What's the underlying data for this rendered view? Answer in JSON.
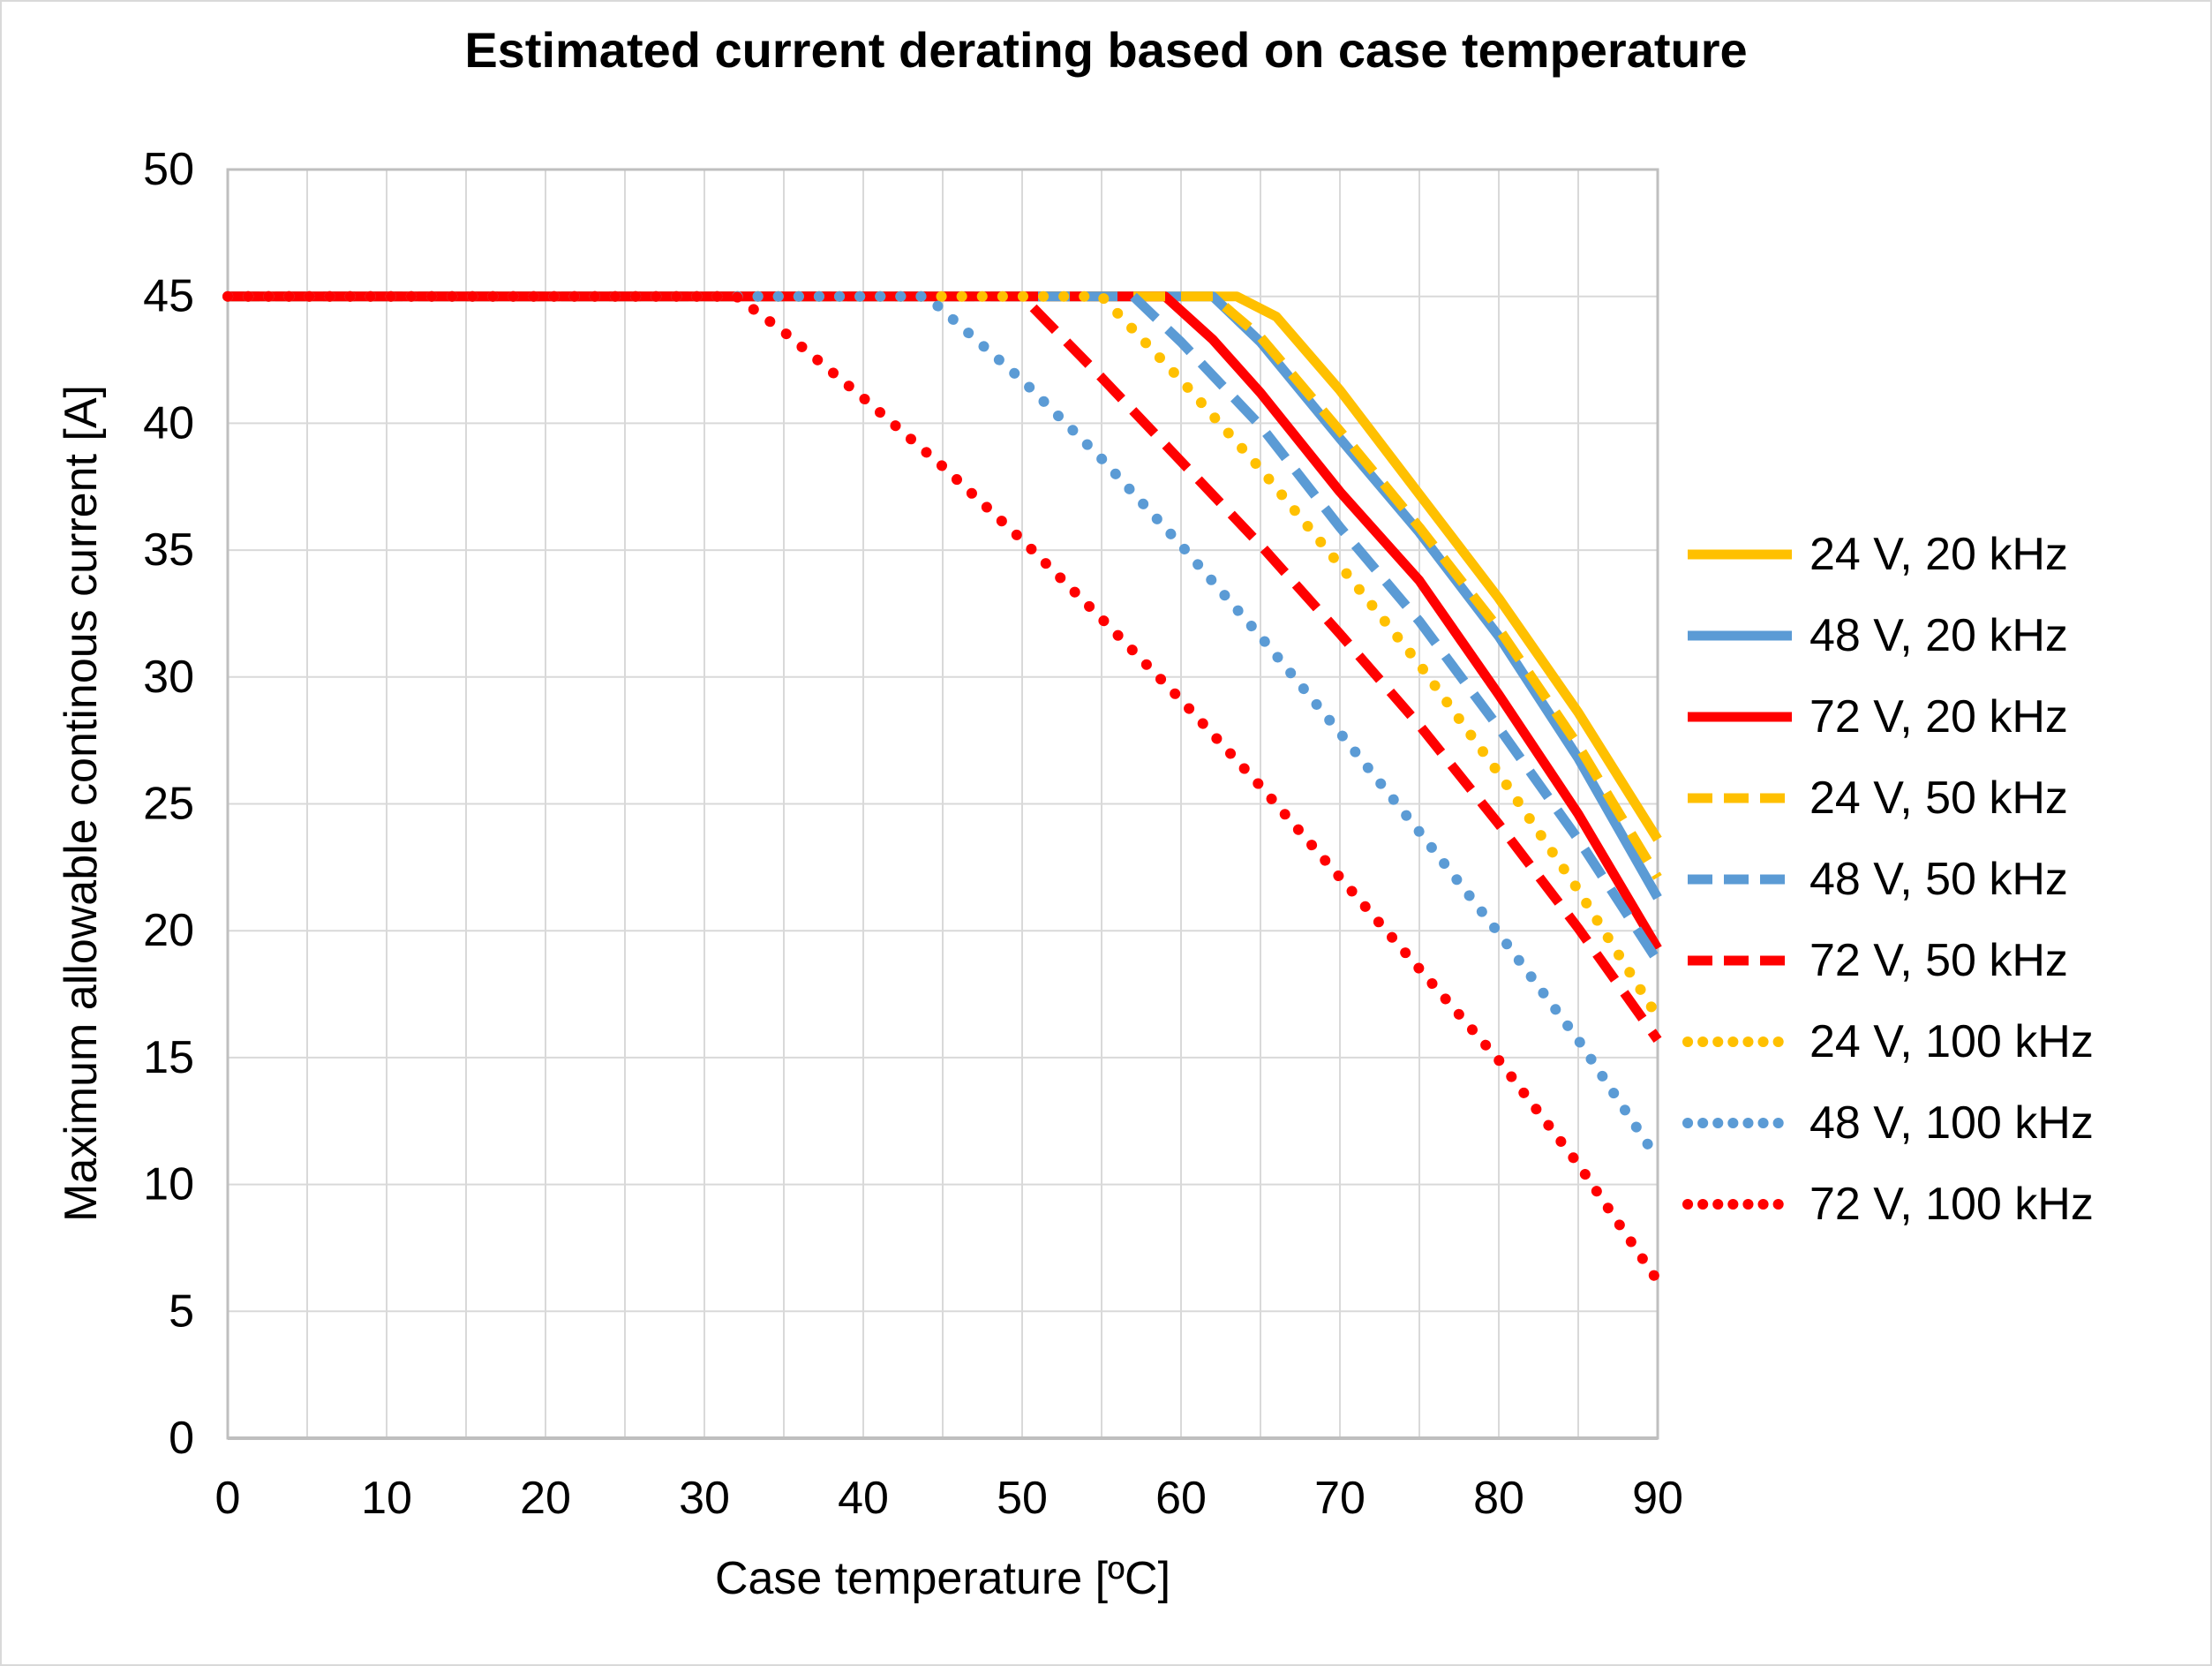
{
  "chart_data": {
    "type": "line",
    "title": "Estimated current derating based on case temperature",
    "xlabel": "Case temperature [ºC]",
    "ylabel": "Maximum allowable continous current [A]",
    "xlim": [
      0,
      90
    ],
    "ylim": [
      0,
      50
    ],
    "x_ticks": [
      0,
      10,
      20,
      30,
      40,
      50,
      60,
      70,
      80,
      90
    ],
    "y_ticks": [
      0,
      5,
      10,
      15,
      20,
      25,
      30,
      35,
      40,
      45,
      50
    ],
    "grid_step_x": 5,
    "grid_step_y": 5,
    "grid_on": true,
    "legend_position": "right",
    "grid_color": "#d9d9d9",
    "axis_color": "#bfbfbf",
    "series": [
      {
        "name": "24 V, 20 kHz",
        "color": "#FFC000",
        "style": "solid",
        "points": [
          [
            0,
            45
          ],
          [
            63.5,
            45
          ],
          [
            66,
            44.2
          ],
          [
            70,
            41.3
          ],
          [
            75,
            37.2
          ],
          [
            80,
            33.1
          ],
          [
            85,
            28.6
          ],
          [
            90,
            23.6
          ]
        ]
      },
      {
        "name": "48 V, 20 kHz",
        "color": "#5B9BD5",
        "style": "solid",
        "points": [
          [
            0,
            45
          ],
          [
            62,
            45
          ],
          [
            65,
            43.2
          ],
          [
            70,
            39.4
          ],
          [
            75,
            35.7
          ],
          [
            80,
            31.6
          ],
          [
            85,
            26.8
          ],
          [
            90,
            21.3
          ]
        ]
      },
      {
        "name": "72 V, 20 kHz",
        "color": "#FF0000",
        "style": "solid",
        "points": [
          [
            0,
            45
          ],
          [
            59,
            45
          ],
          [
            62,
            43.3
          ],
          [
            65,
            41.2
          ],
          [
            70,
            37.3
          ],
          [
            75,
            33.8
          ],
          [
            80,
            29.3
          ],
          [
            85,
            24.6
          ],
          [
            90,
            19.3
          ]
        ]
      },
      {
        "name": "24 V, 50 kHz",
        "color": "#FFC000",
        "style": "dashed",
        "points": [
          [
            0,
            45
          ],
          [
            62,
            45
          ],
          [
            65,
            43.4
          ],
          [
            70,
            39.7
          ],
          [
            75,
            35.9
          ],
          [
            80,
            31.9
          ],
          [
            85,
            27.3
          ],
          [
            90,
            22.1
          ]
        ]
      },
      {
        "name": "48 V, 50 kHz",
        "color": "#5B9BD5",
        "style": "dashed",
        "points": [
          [
            0,
            45
          ],
          [
            57,
            45
          ],
          [
            60,
            43.2
          ],
          [
            65,
            39.9
          ],
          [
            70,
            35.9
          ],
          [
            75,
            32.2
          ],
          [
            80,
            28.0
          ],
          [
            85,
            23.6
          ],
          [
            90,
            18.8
          ]
        ]
      },
      {
        "name": "72 V, 50 kHz",
        "color": "#FF0000",
        "style": "dashed",
        "points": [
          [
            0,
            45
          ],
          [
            50,
            45
          ],
          [
            55,
            41.8
          ],
          [
            60,
            38.5
          ],
          [
            65,
            35.2
          ],
          [
            70,
            31.7
          ],
          [
            75,
            28.1
          ],
          [
            80,
            24.2
          ],
          [
            85,
            20.1
          ],
          [
            90,
            15.7
          ]
        ]
      },
      {
        "name": "24 V, 100 kHz",
        "color": "#FFC000",
        "style": "dotted",
        "points": [
          [
            0,
            45
          ],
          [
            55,
            45
          ],
          [
            60,
            41.7
          ],
          [
            65,
            38.2
          ],
          [
            70,
            34.4
          ],
          [
            75,
            30.5
          ],
          [
            80,
            26.2
          ],
          [
            85,
            21.6
          ],
          [
            90,
            16.6
          ]
        ]
      },
      {
        "name": "48 V, 100 kHz",
        "color": "#5B9BD5",
        "style": "dotted",
        "points": [
          [
            0,
            45
          ],
          [
            44,
            45
          ],
          [
            50,
            41.7
          ],
          [
            55,
            38.6
          ],
          [
            60,
            35.2
          ],
          [
            65,
            31.6
          ],
          [
            70,
            27.8
          ],
          [
            75,
            23.9
          ],
          [
            80,
            19.9
          ],
          [
            85,
            15.7
          ],
          [
            90,
            11.0
          ]
        ]
      },
      {
        "name": "72 V, 100 kHz",
        "color": "#FF0000",
        "style": "dotted",
        "points": [
          [
            0,
            45
          ],
          [
            32,
            45
          ],
          [
            35,
            43.6
          ],
          [
            40,
            41.0
          ],
          [
            45,
            38.3
          ],
          [
            50,
            35.4
          ],
          [
            55,
            32.3
          ],
          [
            60,
            29.1
          ],
          [
            65,
            25.7
          ],
          [
            70,
            22.1
          ],
          [
            75,
            18.5
          ],
          [
            80,
            14.9
          ],
          [
            85,
            10.8
          ],
          [
            90,
            6.2
          ]
        ]
      }
    ]
  }
}
